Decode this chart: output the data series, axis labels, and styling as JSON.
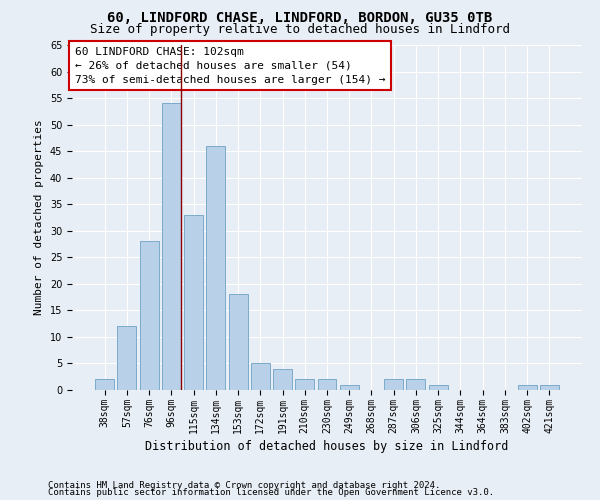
{
  "title1": "60, LINDFORD CHASE, LINDFORD, BORDON, GU35 0TB",
  "title2": "Size of property relative to detached houses in Lindford",
  "xlabel": "Distribution of detached houses by size in Lindford",
  "ylabel": "Number of detached properties",
  "categories": [
    "38sqm",
    "57sqm",
    "76sqm",
    "96sqm",
    "115sqm",
    "134sqm",
    "153sqm",
    "172sqm",
    "191sqm",
    "210sqm",
    "230sqm",
    "249sqm",
    "268sqm",
    "287sqm",
    "306sqm",
    "325sqm",
    "344sqm",
    "364sqm",
    "383sqm",
    "402sqm",
    "421sqm"
  ],
  "values": [
    2,
    12,
    28,
    54,
    33,
    46,
    18,
    5,
    4,
    2,
    2,
    1,
    0,
    2,
    2,
    1,
    0,
    0,
    0,
    1,
    1
  ],
  "bar_color": "#b8d0e8",
  "bar_edge_color": "#7aaaca",
  "vline_x_index": 3,
  "vline_color": "#8b0000",
  "annotation_title": "60 LINDFORD CHASE: 102sqm",
  "annotation_line1": "← 26% of detached houses are smaller (54)",
  "annotation_line2": "73% of semi-detached houses are larger (154) →",
  "annotation_box_color": "white",
  "annotation_box_edge": "#cc0000",
  "ylim": [
    0,
    65
  ],
  "yticks": [
    0,
    5,
    10,
    15,
    20,
    25,
    30,
    35,
    40,
    45,
    50,
    55,
    60,
    65
  ],
  "footer1": "Contains HM Land Registry data © Crown copyright and database right 2024.",
  "footer2": "Contains public sector information licensed under the Open Government Licence v3.0.",
  "bg_color": "#e8eef5",
  "title1_fontsize": 10,
  "title2_fontsize": 9,
  "xlabel_fontsize": 8.5,
  "ylabel_fontsize": 8,
  "tick_fontsize": 7,
  "annotation_fontsize": 8,
  "footer_fontsize": 6.5
}
